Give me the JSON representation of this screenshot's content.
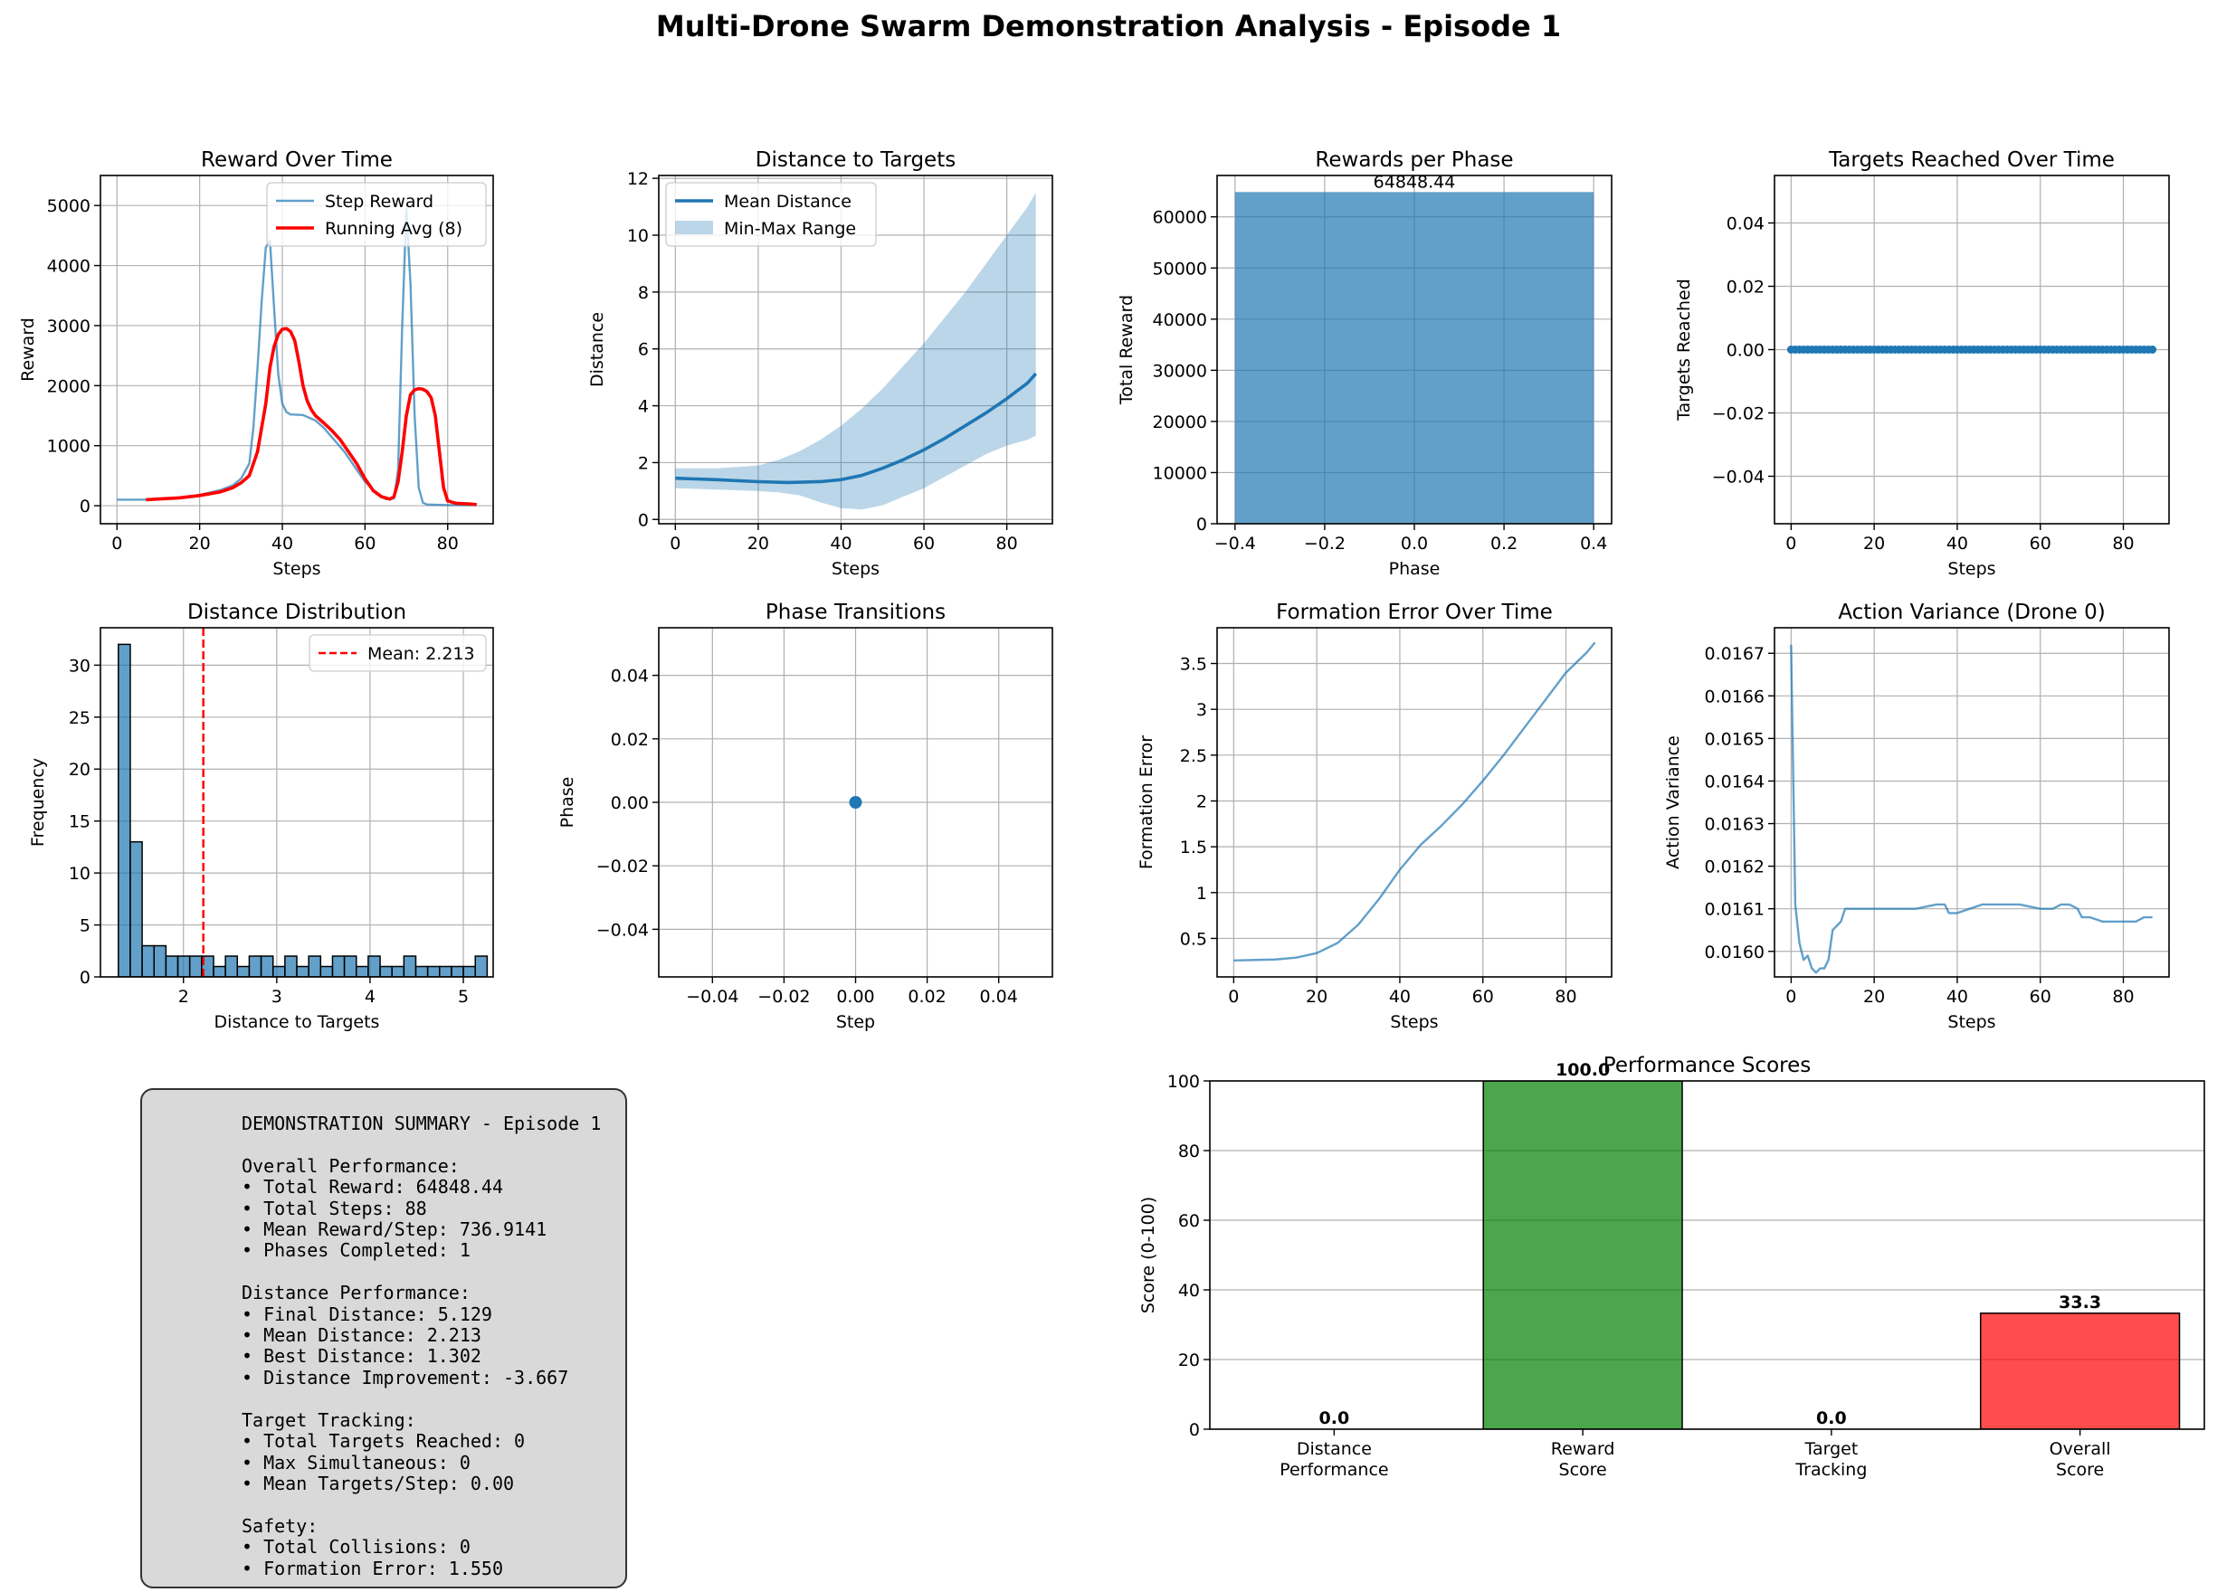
{
  "figure": {
    "title": "Multi-Drone Swarm Demonstration Analysis - Episode 1"
  },
  "chart_data": [
    {
      "id": "reward",
      "type": "line",
      "title": "Reward Over Time",
      "xlabel": "Steps",
      "ylabel": "Reward",
      "xlim": [
        -4,
        91
      ],
      "ylim": [
        -300,
        5500
      ],
      "xticks": [
        0,
        20,
        40,
        60,
        80
      ],
      "yticks": [
        0,
        1000,
        2000,
        3000,
        4000,
        5000
      ],
      "grid": true,
      "legend": "upper-right",
      "series": [
        {
          "name": "Step Reward",
          "color": "#1f77b4",
          "points": [
            [
              0,
              100
            ],
            [
              6,
              100
            ],
            [
              10,
              110
            ],
            [
              15,
              130
            ],
            [
              20,
              180
            ],
            [
              25,
              260
            ],
            [
              28,
              340
            ],
            [
              30,
              450
            ],
            [
              32,
              700
            ],
            [
              33,
              1300
            ],
            [
              34,
              2300
            ],
            [
              35,
              3400
            ],
            [
              36,
              4300
            ],
            [
              37,
              4420
            ],
            [
              38,
              3300
            ],
            [
              39,
              2200
            ],
            [
              40,
              1700
            ],
            [
              41,
              1560
            ],
            [
              42,
              1520
            ],
            [
              45,
              1510
            ],
            [
              48,
              1420
            ],
            [
              50,
              1300
            ],
            [
              55,
              900
            ],
            [
              58,
              600
            ],
            [
              60,
              400
            ],
            [
              63,
              200
            ],
            [
              65,
              110
            ],
            [
              67,
              120
            ],
            [
              68,
              600
            ],
            [
              69,
              3000
            ],
            [
              70,
              4950
            ],
            [
              71,
              3700
            ],
            [
              72,
              1500
            ],
            [
              73,
              300
            ],
            [
              74,
              50
            ],
            [
              75,
              20
            ],
            [
              80,
              10
            ],
            [
              85,
              10
            ],
            [
              87,
              10
            ]
          ]
        },
        {
          "name": "Running Avg (8)",
          "color": "#ff0000",
          "points": [
            [
              7,
              100
            ],
            [
              15,
              130
            ],
            [
              20,
              170
            ],
            [
              25,
              230
            ],
            [
              28,
              300
            ],
            [
              30,
              380
            ],
            [
              32,
              500
            ],
            [
              34,
              900
            ],
            [
              36,
              1700
            ],
            [
              37,
              2300
            ],
            [
              38,
              2650
            ],
            [
              39,
              2850
            ],
            [
              40,
              2940
            ],
            [
              41,
              2950
            ],
            [
              42,
              2900
            ],
            [
              43,
              2750
            ],
            [
              44,
              2400
            ],
            [
              45,
              2000
            ],
            [
              46,
              1750
            ],
            [
              47,
              1600
            ],
            [
              48,
              1500
            ],
            [
              50,
              1380
            ],
            [
              52,
              1250
            ],
            [
              54,
              1100
            ],
            [
              56,
              900
            ],
            [
              58,
              700
            ],
            [
              60,
              450
            ],
            [
              62,
              250
            ],
            [
              64,
              150
            ],
            [
              66,
              110
            ],
            [
              67,
              150
            ],
            [
              68,
              400
            ],
            [
              69,
              900
            ],
            [
              70,
              1500
            ],
            [
              71,
              1850
            ],
            [
              72,
              1930
            ],
            [
              73,
              1950
            ],
            [
              74,
              1940
            ],
            [
              75,
              1900
            ],
            [
              76,
              1800
            ],
            [
              77,
              1500
            ],
            [
              78,
              900
            ],
            [
              79,
              300
            ],
            [
              80,
              80
            ],
            [
              82,
              40
            ],
            [
              85,
              30
            ],
            [
              87,
              20
            ]
          ]
        }
      ]
    },
    {
      "id": "distance",
      "type": "line",
      "title": "Distance to Targets",
      "xlabel": "Steps",
      "ylabel": "Distance",
      "xlim": [
        -4,
        91
      ],
      "ylim": [
        -0.15,
        12.1
      ],
      "xticks": [
        0,
        20,
        40,
        60,
        80
      ],
      "yticks": [
        0,
        2,
        4,
        6,
        8,
        10,
        12
      ],
      "grid": true,
      "legend": "upper-left",
      "series": [
        {
          "name": "Mean Distance",
          "color": "#1f77b4",
          "points": [
            [
              0,
              1.45
            ],
            [
              10,
              1.4
            ],
            [
              20,
              1.33
            ],
            [
              27,
              1.3
            ],
            [
              35,
              1.33
            ],
            [
              40,
              1.4
            ],
            [
              45,
              1.55
            ],
            [
              50,
              1.8
            ],
            [
              55,
              2.1
            ],
            [
              60,
              2.45
            ],
            [
              65,
              2.85
            ],
            [
              70,
              3.3
            ],
            [
              75,
              3.75
            ],
            [
              80,
              4.25
            ],
            [
              85,
              4.8
            ],
            [
              87,
              5.13
            ]
          ]
        }
      ],
      "band": {
        "name": "Min-Max Range",
        "color": "#1f77b4",
        "x": [
          0,
          10,
          20,
          25,
          30,
          35,
          40,
          45,
          50,
          55,
          60,
          65,
          70,
          75,
          80,
          85,
          87
        ],
        "upper": [
          1.8,
          1.8,
          1.9,
          2.1,
          2.4,
          2.8,
          3.3,
          3.9,
          4.6,
          5.4,
          6.2,
          7.1,
          8.0,
          9.0,
          10.0,
          11.0,
          11.5
        ],
        "lower": [
          1.1,
          1.05,
          1.0,
          0.95,
          0.85,
          0.6,
          0.4,
          0.35,
          0.5,
          0.8,
          1.1,
          1.5,
          1.9,
          2.3,
          2.6,
          2.8,
          2.95
        ]
      }
    },
    {
      "id": "phase_rewards",
      "type": "bar",
      "title": "Rewards per Phase",
      "xlabel": "Phase",
      "ylabel": "Total Reward",
      "xlim": [
        -0.44,
        0.44
      ],
      "ylim": [
        0,
        68090
      ],
      "xticks": [
        -0.4,
        -0.2,
        0.0,
        0.2,
        0.4
      ],
      "xtick_labels": [
        "−0.4",
        "−0.2",
        "0.0",
        "0.2",
        "0.4"
      ],
      "yticks": [
        0,
        10000,
        20000,
        30000,
        40000,
        50000,
        60000
      ],
      "grid": true,
      "bars": [
        {
          "x": 0,
          "width": 0.8,
          "value": 64848.44,
          "label": "64848.44",
          "color": "#1f77b4"
        }
      ]
    },
    {
      "id": "targets",
      "type": "line",
      "title": "Targets Reached Over Time",
      "xlabel": "Steps",
      "ylabel": "Targets Reached",
      "xlim": [
        -4,
        91
      ],
      "ylim": [
        -0.055,
        0.055
      ],
      "xticks": [
        0,
        20,
        40,
        60,
        80
      ],
      "yticks": [
        -0.04,
        -0.02,
        0.0,
        0.02,
        0.04
      ],
      "ytick_labels": [
        "−0.04",
        "−0.02",
        "0.00",
        "0.02",
        "0.04"
      ],
      "grid": true,
      "series": [
        {
          "name": "",
          "color": "#1f77b4",
          "markers": true,
          "x_range": [
            0,
            87
          ],
          "y_const": 0
        }
      ]
    },
    {
      "id": "dist_hist",
      "type": "bar",
      "title": "Distance Distribution",
      "xlabel": "Distance to Targets",
      "ylabel": "Frequency",
      "xlim": [
        1.11,
        5.32
      ],
      "ylim": [
        0,
        33.6
      ],
      "xticks": [
        2,
        3,
        4,
        5
      ],
      "yticks": [
        0,
        5,
        10,
        15,
        20,
        25,
        30
      ],
      "grid": true,
      "legend": "upper-right",
      "bin_start": 1.302,
      "bin_width": 0.12754,
      "counts": [
        32,
        13,
        3,
        3,
        2,
        2,
        2,
        2,
        1,
        2,
        1,
        2,
        2,
        1,
        2,
        1,
        2,
        1,
        2,
        2,
        1,
        2,
        1,
        1,
        2,
        1,
        1,
        1,
        1,
        1,
        2
      ],
      "mean_line": {
        "value": 2.213,
        "label": "Mean: 2.213",
        "color": "#ff0000"
      }
    },
    {
      "id": "phase_transitions",
      "type": "scatter",
      "title": "Phase Transitions",
      "xlabel": "Step",
      "ylabel": "Phase",
      "xlim": [
        -0.055,
        0.055
      ],
      "ylim": [
        -0.055,
        0.055
      ],
      "xticks": [
        -0.04,
        -0.02,
        0.0,
        0.02,
        0.04
      ],
      "xtick_labels": [
        "−0.04",
        "−0.02",
        "0.00",
        "0.02",
        "0.04"
      ],
      "yticks": [
        -0.04,
        -0.02,
        0.0,
        0.02,
        0.04
      ],
      "ytick_labels": [
        "−0.04",
        "−0.02",
        "0.00",
        "0.02",
        "0.04"
      ],
      "grid": true,
      "points": [
        [
          0,
          0
        ]
      ]
    },
    {
      "id": "formation",
      "type": "line",
      "title": "Formation Error Over Time",
      "xlabel": "Steps",
      "ylabel": "Formation Error",
      "xlim": [
        -4,
        91
      ],
      "ylim": [
        0.08,
        3.89
      ],
      "xticks": [
        0,
        20,
        40,
        60,
        80
      ],
      "yticks": [
        0.5,
        1.0,
        1.5,
        2.0,
        2.5,
        3.0,
        3.5
      ],
      "grid": true,
      "series": [
        {
          "name": "",
          "color": "#1f77b4",
          "points": [
            [
              0,
              0.26
            ],
            [
              10,
              0.27
            ],
            [
              15,
              0.29
            ],
            [
              20,
              0.34
            ],
            [
              25,
              0.45
            ],
            [
              30,
              0.65
            ],
            [
              35,
              0.93
            ],
            [
              40,
              1.25
            ],
            [
              45,
              1.52
            ],
            [
              50,
              1.73
            ],
            [
              55,
              1.96
            ],
            [
              60,
              2.22
            ],
            [
              65,
              2.5
            ],
            [
              70,
              2.8
            ],
            [
              75,
              3.1
            ],
            [
              80,
              3.4
            ],
            [
              85,
              3.62
            ],
            [
              87,
              3.73
            ]
          ]
        }
      ]
    },
    {
      "id": "action_var",
      "type": "line",
      "title": "Action Variance (Drone 0)",
      "xlabel": "Steps",
      "ylabel": "Action Variance",
      "xlim": [
        -4,
        91
      ],
      "ylim": [
        0.01594,
        0.01676
      ],
      "xticks": [
        0,
        20,
        40,
        60,
        80
      ],
      "yticks": [
        0.016,
        0.0161,
        0.0162,
        0.0163,
        0.0164,
        0.0165,
        0.0166,
        0.0167
      ],
      "ytick_labels": [
        "0.0160",
        "0.0161",
        "0.0162",
        "0.0163",
        "0.0164",
        "0.0165",
        "0.0166",
        "0.0167"
      ],
      "grid": true,
      "series": [
        {
          "name": "",
          "color": "#1f77b4",
          "points": [
            [
              0,
              0.01672
            ],
            [
              1,
              0.01611
            ],
            [
              2,
              0.01602
            ],
            [
              3,
              0.01598
            ],
            [
              4,
              0.01599
            ],
            [
              5,
              0.01596
            ],
            [
              6,
              0.01595
            ],
            [
              7,
              0.01596
            ],
            [
              8,
              0.01596
            ],
            [
              9,
              0.01598
            ],
            [
              10,
              0.01605
            ],
            [
              11,
              0.01606
            ],
            [
              12,
              0.01607
            ],
            [
              13,
              0.0161
            ],
            [
              14,
              0.0161
            ],
            [
              20,
              0.0161
            ],
            [
              25,
              0.0161
            ],
            [
              30,
              0.0161
            ],
            [
              35,
              0.01611
            ],
            [
              37,
              0.01611
            ],
            [
              38,
              0.01609
            ],
            [
              40,
              0.01609
            ],
            [
              43,
              0.0161
            ],
            [
              46,
              0.01611
            ],
            [
              50,
              0.01611
            ],
            [
              55,
              0.01611
            ],
            [
              60,
              0.0161
            ],
            [
              63,
              0.0161
            ],
            [
              65,
              0.01611
            ],
            [
              67,
              0.01611
            ],
            [
              69,
              0.0161
            ],
            [
              70,
              0.01608
            ],
            [
              72,
              0.01608
            ],
            [
              75,
              0.01607
            ],
            [
              80,
              0.01607
            ],
            [
              83,
              0.01607
            ],
            [
              85,
              0.01608
            ],
            [
              87,
              0.01608
            ]
          ]
        }
      ]
    },
    {
      "id": "scores",
      "type": "bar",
      "title": "Performance Scores",
      "xlabel": "",
      "ylabel": "Score (0-100)",
      "ylim": [
        0,
        100
      ],
      "yticks": [
        0,
        20,
        40,
        60,
        80,
        100
      ],
      "grid": true,
      "categories": [
        "Distance\nPerformance",
        "Reward\nScore",
        "Target\nTracking",
        "Overall\nScore"
      ],
      "values": [
        0.0,
        100.0,
        0.0,
        33.3
      ],
      "labels": [
        "0.0",
        "100.0",
        "0.0",
        "33.3"
      ],
      "colors": [
        "#ff0000",
        "#008000",
        "#ff0000",
        "#ff0000"
      ]
    }
  ],
  "summary": {
    "lines": [
      "DEMONSTRATION SUMMARY - Episode 1",
      "",
      "Overall Performance:",
      "• Total Reward: 64848.44",
      "• Total Steps: 88",
      "• Mean Reward/Step: 736.9141",
      "• Phases Completed: 1",
      "",
      "Distance Performance:",
      "• Final Distance: 5.129",
      "• Mean Distance: 2.213",
      "• Best Distance: 1.302",
      "• Distance Improvement: -3.667",
      "",
      "Target Tracking:",
      "• Total Targets Reached: 0",
      "• Max Simultaneous: 0",
      "• Mean Targets/Step: 0.00",
      "",
      "Safety:",
      "• Total Collisions: 0",
      "• Formation Error: 1.550"
    ]
  }
}
